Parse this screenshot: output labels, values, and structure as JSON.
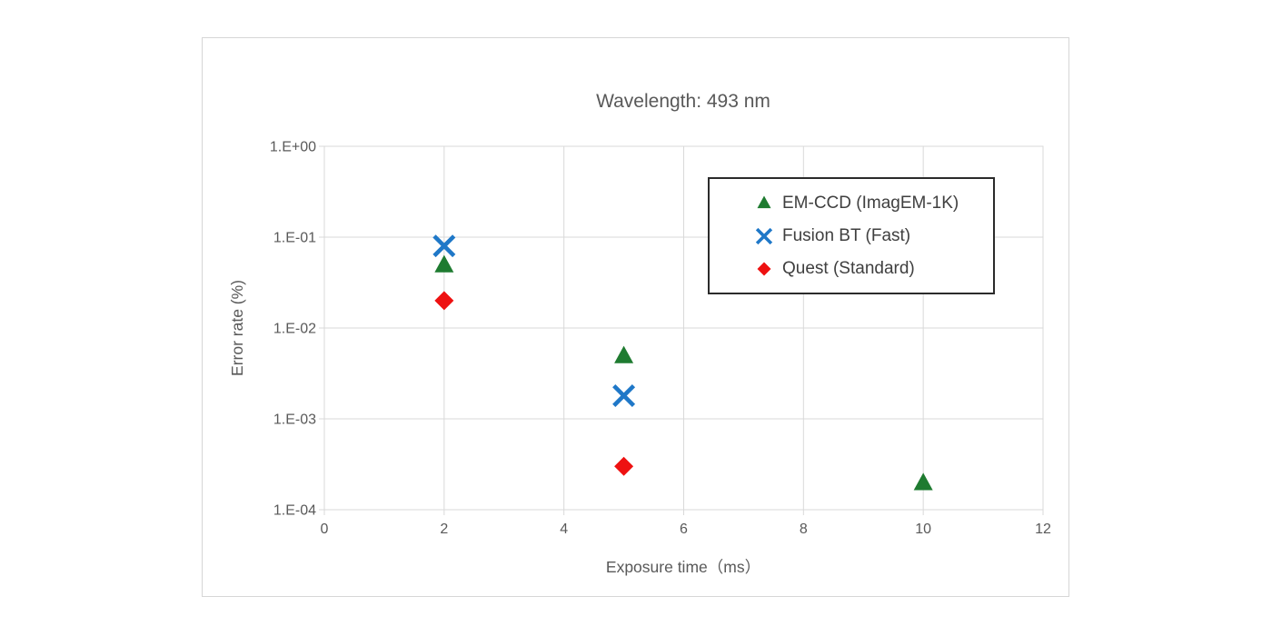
{
  "chart_data": {
    "type": "scatter",
    "title": "Wavelength: 493 nm",
    "xlabel": "Exposure time（ms）",
    "ylabel": "Error rate (%)",
    "x_scale": "linear",
    "y_scale": "log",
    "xlim": [
      0,
      12
    ],
    "ylim": [
      0.0001,
      1
    ],
    "x_ticks": [
      0,
      2,
      4,
      6,
      8,
      10,
      12
    ],
    "x_tick_labels": [
      "0",
      "2",
      "4",
      "6",
      "8",
      "10",
      "12"
    ],
    "y_tick_values": [
      1,
      0.1,
      0.01,
      0.001,
      0.0001
    ],
    "y_tick_labels": [
      "1.E+00",
      "1.E-01",
      "1.E-02",
      "1.E-03",
      "1.E-04"
    ],
    "grid": true,
    "legend_position": "inside-upper-right",
    "series": [
      {
        "name": "EM-CCD (ImagEM-1K)",
        "marker": "triangle",
        "color": "#1e7b30",
        "points": [
          [
            2,
            0.05
          ],
          [
            5,
            0.005
          ],
          [
            10,
            0.0002
          ]
        ]
      },
      {
        "name": "Fusion BT (Fast)",
        "marker": "x",
        "color": "#1f78c8",
        "points": [
          [
            2,
            0.08
          ],
          [
            5,
            0.0018
          ]
        ]
      },
      {
        "name": "Quest (Standard)",
        "marker": "diamond",
        "color": "#ee1111",
        "points": [
          [
            2,
            0.02
          ],
          [
            5,
            0.0003
          ]
        ]
      }
    ]
  },
  "colors": {
    "gridline": "#d9d9d9",
    "plot_border": "#d9d9d9",
    "tick_mark": "#d9d9d9",
    "axis_text": "#595959",
    "title_text": "#595959",
    "legend_text": "#3f3f3f",
    "legend_border": "#2b2b2b",
    "frame_border": "#d6d6d6",
    "background": "#ffffff"
  }
}
